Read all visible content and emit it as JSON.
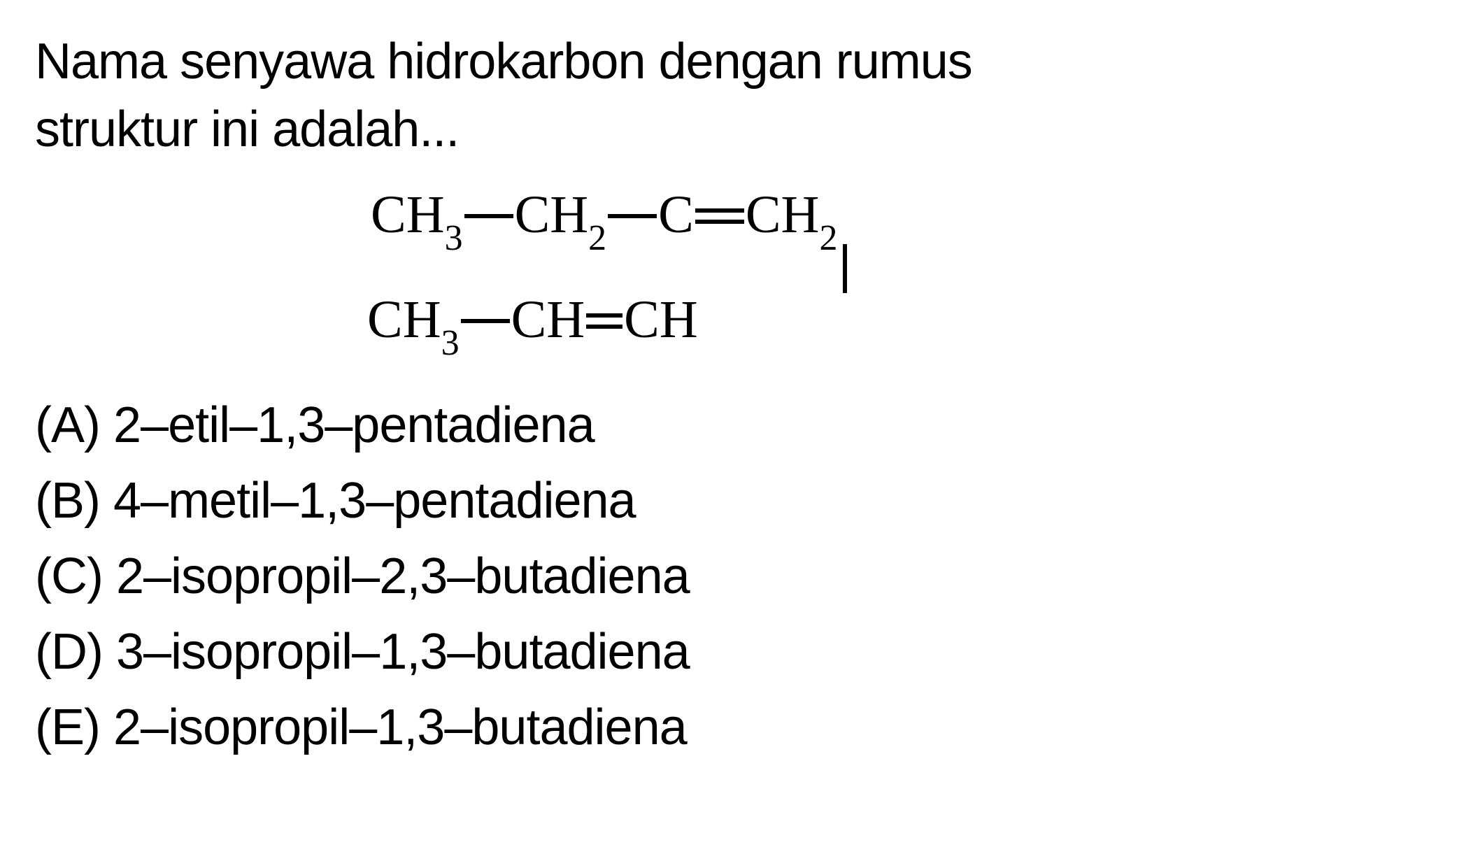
{
  "question": {
    "line1": "Nama senyawa hidrokarbon dengan rumus",
    "line2": "struktur ini adalah..."
  },
  "structure": {
    "groups": {
      "ch3": "CH",
      "ch2": "CH",
      "c": "C",
      "ch": "CH",
      "sub3": "3",
      "sub2": "2"
    }
  },
  "options": {
    "a": "(A) 2–etil–1,3–pentadiena",
    "b": "(B) 4–metil–1,3–pentadiena",
    "c": "(C) 2–isopropil–2,3–butadiena",
    "d": "(D) 3–isopropil–1,3–butadiena",
    "e": "(E) 2–isopropil–1,3–butadiena"
  },
  "colors": {
    "text": "#000000",
    "background": "#ffffff"
  },
  "typography": {
    "question_fontsize": 72,
    "structure_fontsize": 76,
    "structure_font": "Times New Roman",
    "body_font": "Arial"
  }
}
